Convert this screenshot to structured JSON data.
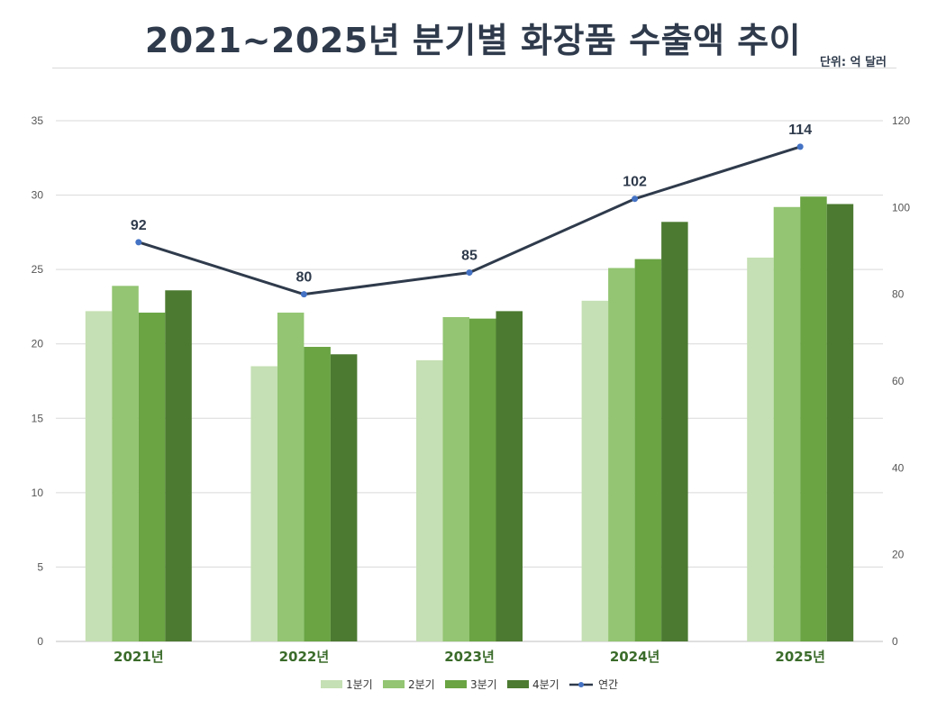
{
  "chart_data": {
    "type": "bar",
    "title": "2021~2025년 분기별 화장품 수출액 추이",
    "unit": "단위: 억 달러",
    "categories": [
      "2021년",
      "2022년",
      "2023년",
      "2024년",
      "2025년"
    ],
    "series": [
      {
        "name": "1분기",
        "type": "bar",
        "axis": "left",
        "color": "#c5e0b4",
        "values": [
          22.2,
          18.5,
          18.9,
          22.9,
          25.8
        ]
      },
      {
        "name": "2분기",
        "type": "bar",
        "axis": "left",
        "color": "#93c572",
        "values": [
          23.9,
          22.1,
          21.8,
          25.1,
          29.2
        ]
      },
      {
        "name": "3분기",
        "type": "bar",
        "axis": "left",
        "color": "#6aa443",
        "values": [
          22.1,
          19.8,
          21.7,
          25.7,
          29.9
        ]
      },
      {
        "name": "4분기",
        "type": "bar",
        "axis": "left",
        "color": "#4c7a31",
        "values": [
          23.6,
          19.3,
          22.2,
          28.2,
          29.4
        ]
      },
      {
        "name": "연간",
        "type": "line",
        "axis": "right",
        "color": "#2f3b4c",
        "marker_color": "#4472c4",
        "values": [
          92,
          80,
          85,
          102,
          114
        ],
        "labels": [
          "92",
          "80",
          "85",
          "102",
          "114"
        ]
      }
    ],
    "y_left": {
      "min": 0,
      "max": 35,
      "ticks": [
        "0",
        "5",
        "10",
        "15",
        "20",
        "25",
        "30",
        "35"
      ]
    },
    "y_right": {
      "min": 0,
      "max": 120,
      "ticks": [
        "0",
        "20",
        "40",
        "60",
        "80",
        "100",
        "120"
      ]
    },
    "grid": true,
    "legend_position": "bottom"
  }
}
